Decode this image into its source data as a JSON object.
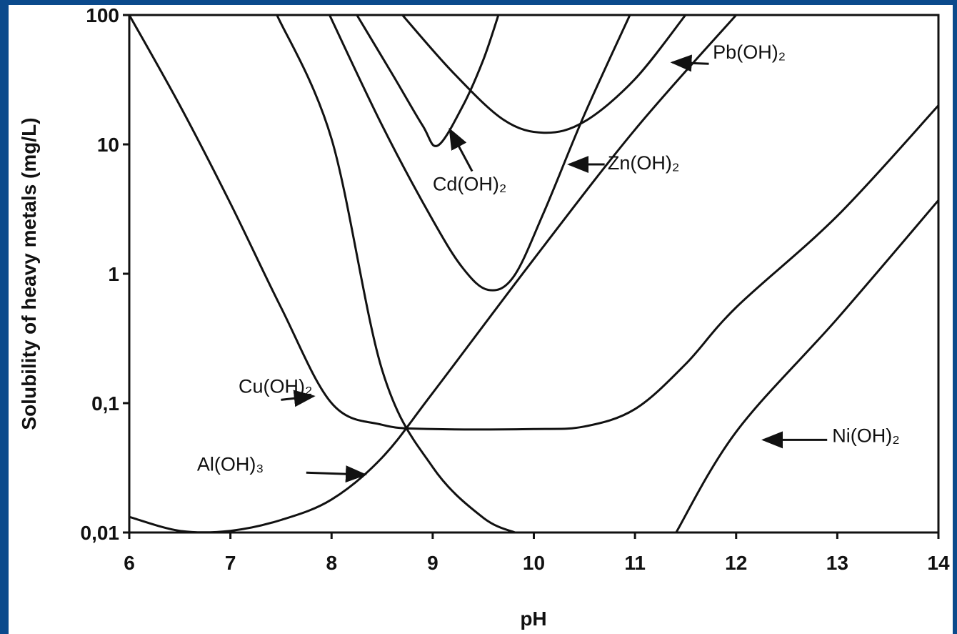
{
  "chart_data": {
    "type": "line",
    "xlabel": "pH",
    "ylabel": "Solubility of heavy metals (mg/L)",
    "xlim": [
      6,
      14
    ],
    "ylim": [
      0.01,
      100
    ],
    "yscale": "log",
    "grid": false,
    "x_ticks": [
      "6",
      "7",
      "8",
      "9",
      "10",
      "11",
      "12",
      "13",
      "14"
    ],
    "y_ticks": [
      "0,01",
      "0,1",
      "1",
      "10",
      "100"
    ],
    "series": [
      {
        "name": "Cu(OH)₂",
        "points": [
          [
            6.0,
            100
          ],
          [
            6.5,
            20
          ],
          [
            7.0,
            3.5
          ],
          [
            7.5,
            0.55
          ],
          [
            8.0,
            0.1
          ],
          [
            8.5,
            0.068
          ],
          [
            9.0,
            0.063
          ],
          [
            10.0,
            0.063
          ],
          [
            10.5,
            0.066
          ],
          [
            11.0,
            0.09
          ],
          [
            11.5,
            0.2
          ],
          [
            12.0,
            0.55
          ],
          [
            13.0,
            2.8
          ],
          [
            14.0,
            20
          ]
        ]
      },
      {
        "name": "Al(OH)₃",
        "points": [
          [
            6.0,
            0.0132
          ],
          [
            6.5,
            0.0103
          ],
          [
            7.0,
            0.0103
          ],
          [
            7.5,
            0.0125
          ],
          [
            8.0,
            0.018
          ],
          [
            8.5,
            0.038
          ],
          [
            9.0,
            0.12
          ],
          [
            10.0,
            1.3
          ],
          [
            11.0,
            13
          ],
          [
            12.0,
            100
          ]
        ]
      },
      {
        "name": "Cd(OH)₂",
        "points": [
          [
            7.46,
            100
          ],
          [
            8.0,
            11
          ],
          [
            8.5,
            0.18
          ],
          [
            9.0,
            0.032
          ],
          [
            9.5,
            0.013
          ],
          [
            9.83,
            0.0099
          ]
        ]
      },
      {
        "name": "Zn(OH)₂",
        "points": [
          [
            7.98,
            100
          ],
          [
            8.5,
            14
          ],
          [
            9.0,
            2.6
          ],
          [
            9.3,
            1.1
          ],
          [
            9.55,
            0.75
          ],
          [
            9.8,
            0.95
          ],
          [
            10.1,
            3.0
          ],
          [
            10.5,
            17
          ],
          [
            10.95,
            100
          ]
        ]
      },
      {
        "name": "Pb(OH)₂",
        "points": [
          [
            8.25,
            100
          ],
          [
            8.6,
            35
          ],
          [
            8.9,
            14
          ],
          [
            9.05,
            9.8
          ],
          [
            9.3,
            20
          ],
          [
            9.5,
            45
          ],
          [
            9.65,
            100
          ]
        ]
      },
      {
        "name": "",
        "points": [
          [
            8.7,
            100
          ],
          [
            9.2,
            36
          ],
          [
            9.7,
            15.5
          ],
          [
            10.1,
            12.3
          ],
          [
            10.5,
            15
          ],
          [
            11.0,
            32
          ],
          [
            11.5,
            100
          ]
        ]
      },
      {
        "name": "Ni(OH)₂",
        "points": [
          [
            11.4,
            0.0098
          ],
          [
            12.0,
            0.06
          ],
          [
            13.0,
            0.45
          ],
          [
            14.0,
            3.7
          ]
        ]
      }
    ],
    "annotations": [
      {
        "text": "Cu(OH)₂",
        "label_at": [
          7.08,
          0.12
        ],
        "arrow_from": [
          7.5,
          0.106
        ],
        "arrow_to": [
          7.82,
          0.113
        ]
      },
      {
        "text": "Al(OH)₃",
        "label_at": [
          6.67,
          0.03
        ],
        "arrow_from": [
          7.75,
          0.029
        ],
        "arrow_to": [
          8.33,
          0.028
        ]
      },
      {
        "text": "Cd(OH)₂",
        "label_at": [
          9.0,
          4.4
        ],
        "arrow_from": [
          9.39,
          6.2
        ],
        "arrow_to": [
          9.17,
          13
        ]
      },
      {
        "text": "Zn(OH)₂",
        "label_at": [
          10.73,
          6.4
        ],
        "arrow_from": [
          10.7,
          7.0
        ],
        "arrow_to": [
          10.35,
          7.0
        ]
      },
      {
        "text": "Pb(OH)₂",
        "label_at": [
          11.77,
          46
        ],
        "arrow_from": [
          11.73,
          42
        ],
        "arrow_to": [
          11.37,
          43
        ]
      },
      {
        "text": "Ni(OH)₂",
        "label_at": [
          12.95,
          0.05
        ],
        "arrow_from": [
          12.9,
          0.052
        ],
        "arrow_to": [
          12.27,
          0.052
        ]
      }
    ]
  }
}
